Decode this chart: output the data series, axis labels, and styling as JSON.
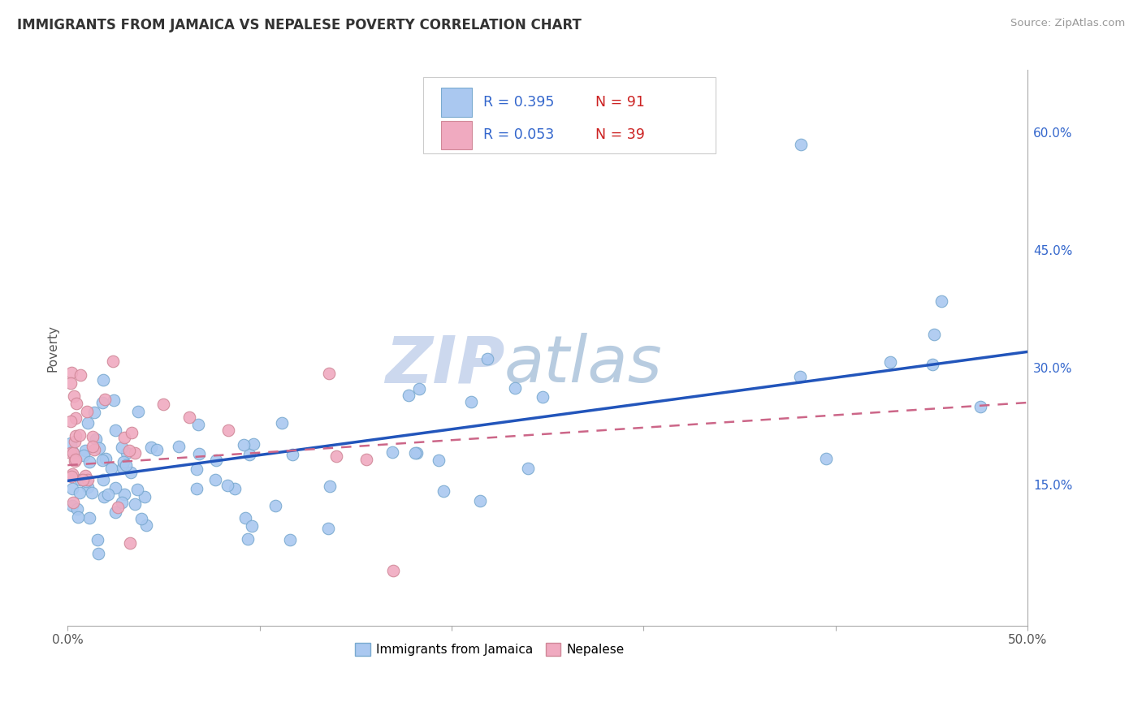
{
  "title": "IMMIGRANTS FROM JAMAICA VS NEPALESE POVERTY CORRELATION CHART",
  "source": "Source: ZipAtlas.com",
  "ylabel": "Poverty",
  "xlim": [
    0.0,
    0.5
  ],
  "ylim": [
    -0.03,
    0.68
  ],
  "xticklabels_ends": [
    "0.0%",
    "50.0%"
  ],
  "yticks_right": [
    0.15,
    0.3,
    0.45,
    0.6
  ],
  "yticklabels_right": [
    "15.0%",
    "30.0%",
    "45.0%",
    "60.0%"
  ],
  "grid_color": "#cccccc",
  "background_color": "#ffffff",
  "watermark_zip": "ZIP",
  "watermark_atlas": "atlas",
  "legend_r1": "R = 0.395",
  "legend_n1": "N = 91",
  "legend_r2": "R = 0.053",
  "legend_n2": "N = 39",
  "series1_color": "#aac8f0",
  "series1_edge": "#7aaad0",
  "series2_color": "#f0aac0",
  "series2_edge": "#d08898",
  "trendline1_color": "#2255bb",
  "trendline2_color": "#cc6688",
  "series1_label": "Immigrants from Jamaica",
  "series2_label": "Nepalese",
  "text_color_blue": "#3366cc",
  "text_color_dark": "#333333"
}
